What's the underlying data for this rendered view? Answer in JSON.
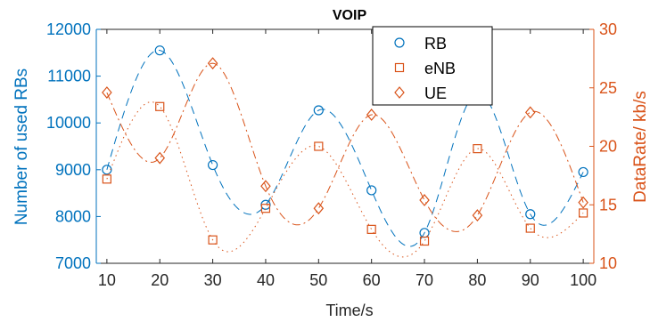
{
  "chart_data": {
    "type": "line",
    "title": "VOIP",
    "xlabel": "Time/s",
    "ylabel_left": "Number of used RBs",
    "ylabel_right": "DataRate/ kb/s",
    "xlim": [
      8,
      102
    ],
    "ylim_left": [
      7000,
      12000
    ],
    "ylim_right": [
      10,
      30
    ],
    "x_ticks": [
      10,
      20,
      30,
      40,
      50,
      60,
      70,
      80,
      90,
      100
    ],
    "y_ticks_left": [
      7000,
      8000,
      9000,
      10000,
      11000,
      12000
    ],
    "y_ticks_right": [
      10,
      15,
      20,
      25,
      30
    ],
    "grid": false,
    "legend_position": "top-center",
    "colors": {
      "left": "#0072BD",
      "right": "#D95319"
    },
    "x": [
      10,
      20,
      30,
      40,
      50,
      60,
      70,
      80,
      90,
      100
    ],
    "series": [
      {
        "name": "RB",
        "axis": "left",
        "marker": "circle",
        "line": "dashed",
        "values": [
          9000,
          11550,
          9100,
          8250,
          10270,
          8560,
          7650,
          10650,
          8050,
          8950
        ]
      },
      {
        "name": "eNB",
        "axis": "right",
        "marker": "square",
        "line": "dotted",
        "values": [
          17.2,
          23.4,
          12.0,
          14.7,
          20.0,
          12.9,
          11.9,
          19.8,
          13.0,
          14.3
        ]
      },
      {
        "name": "UE",
        "axis": "right",
        "marker": "diamond",
        "line": "dashdot",
        "values": [
          24.6,
          19.0,
          27.1,
          16.6,
          14.7,
          22.7,
          15.4,
          14.1,
          22.9,
          15.2
        ]
      }
    ]
  }
}
